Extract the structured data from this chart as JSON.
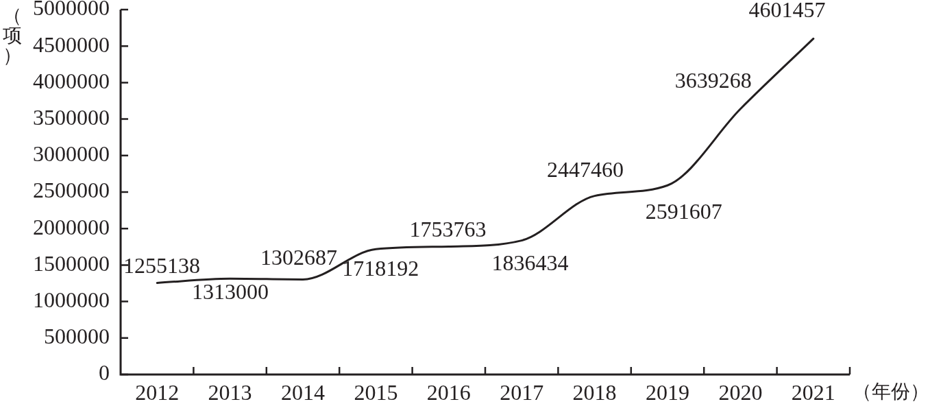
{
  "chart_data": {
    "type": "line",
    "categories": [
      "2012",
      "2013",
      "2014",
      "2015",
      "2016",
      "2017",
      "2018",
      "2019",
      "2020",
      "2021"
    ],
    "values": [
      1255138,
      1313000,
      1302687,
      1718192,
      1753763,
      1836434,
      2447460,
      2591607,
      3639268,
      4601457
    ],
    "color": "#231f20",
    "ylim": [
      0,
      5000000
    ],
    "yticks": [
      0,
      500000,
      1000000,
      1500000,
      2000000,
      2500000,
      3000000,
      3500000,
      4000000,
      4500000,
      5000000
    ],
    "ylabel": "（项）",
    "xlabel": "（年份）",
    "data_labels": true
  }
}
